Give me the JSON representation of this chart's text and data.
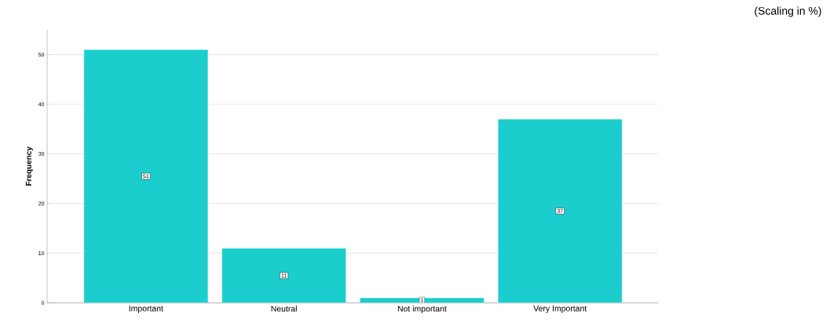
{
  "chart_data": {
    "type": "bar",
    "ylabel": "Frequency",
    "categories": [
      "Important",
      "Neutral",
      "Not important",
      "Very Important"
    ],
    "values": [
      51,
      11,
      1,
      37
    ],
    "color": "#1ccdcd",
    "ylim": [
      0,
      55
    ],
    "yticks": [
      0,
      10,
      20,
      30,
      40,
      50
    ],
    "grid": "y",
    "data_labels": true,
    "annotations": [
      "(Scaling in %)"
    ]
  }
}
